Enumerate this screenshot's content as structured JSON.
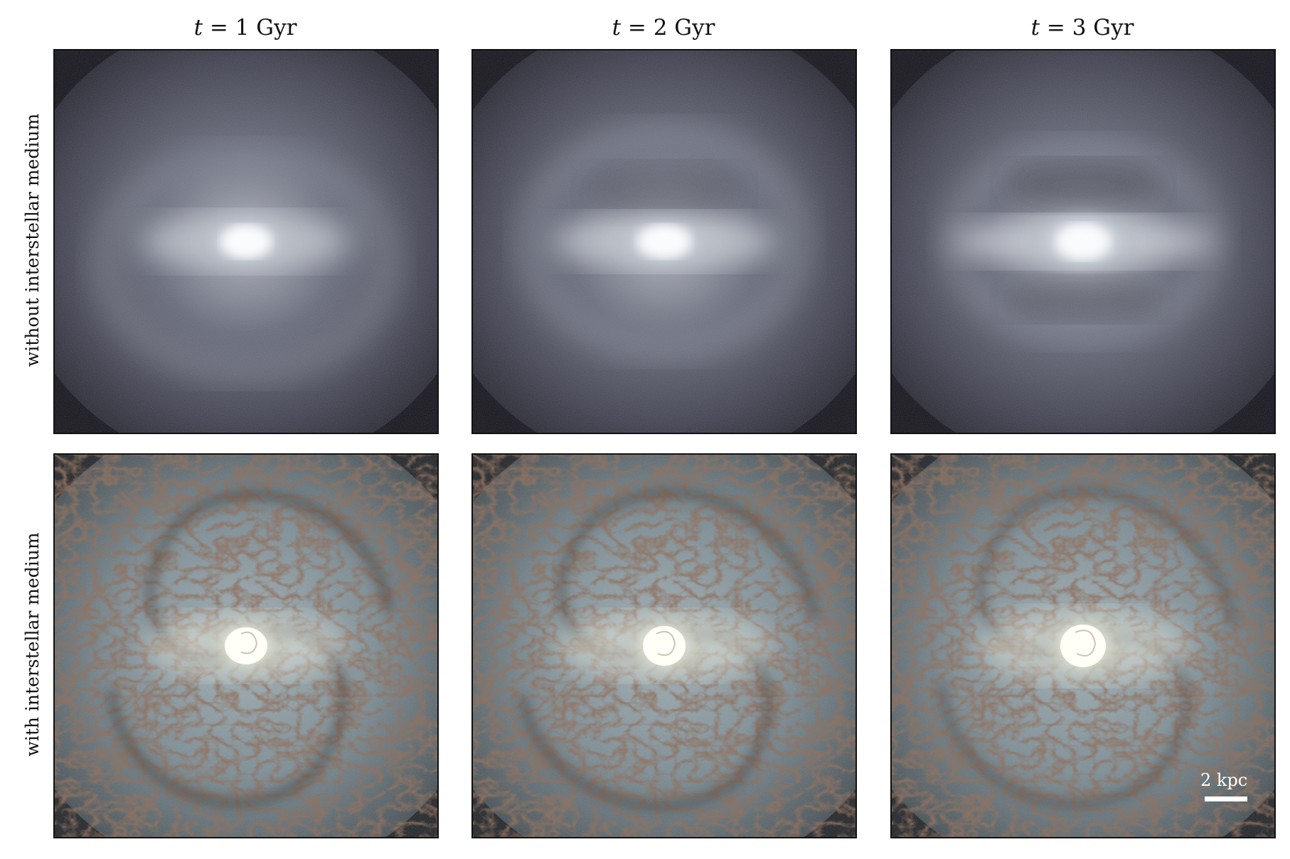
{
  "columns": [
    {
      "t_symbol": "t",
      "t_rest": " = 1 Gyr"
    },
    {
      "t_symbol": "t",
      "t_rest": " = 2 Gyr"
    },
    {
      "t_symbol": "t",
      "t_rest": " = 3 Gyr"
    }
  ],
  "rows": [
    {
      "label": "without interstellar medium"
    },
    {
      "label": "with interstellar medium"
    }
  ],
  "scale_bar": {
    "label": "2 kpc"
  },
  "colors": {
    "background_dark": "#0d0c12",
    "halo_gray": "#6b6b7a",
    "core_white": "#f4f8f8",
    "disk_blue": "#9fb4c0",
    "dust_brown": "#4a2e22"
  }
}
